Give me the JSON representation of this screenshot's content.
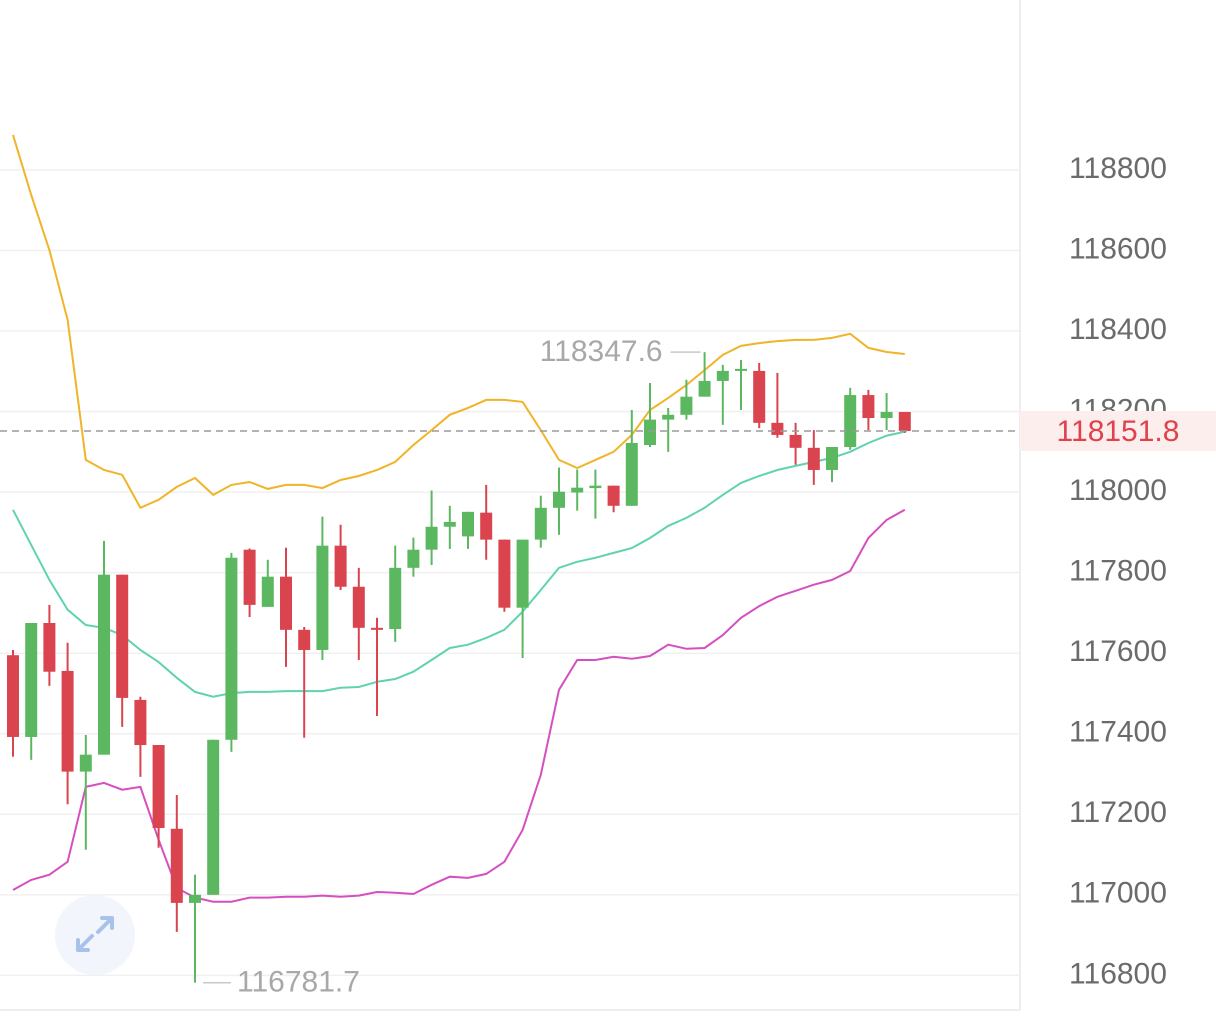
{
  "chart_data": {
    "type": "candlestick",
    "categories": [
      null,
      null,
      null,
      null,
      null,
      null,
      null,
      null,
      null,
      null,
      null,
      null,
      null,
      null,
      null,
      null,
      null,
      null,
      null,
      null,
      null,
      null,
      null,
      null,
      null,
      null,
      null,
      null,
      null,
      null,
      null,
      null,
      null,
      null,
      null,
      null,
      null,
      null,
      null,
      null,
      null,
      null,
      null,
      null,
      null,
      null,
      null,
      null,
      null,
      null
    ],
    "open": [
      117595,
      117392,
      117675,
      117556,
      117306,
      117348,
      117795,
      117484,
      117372,
      117164,
      116980,
      117000,
      117385,
      117857,
      117715,
      117790,
      117658,
      117608,
      117867,
      117765,
      117663,
      117660,
      117812,
      117857,
      117914,
      117890,
      117949,
      117882,
      117713,
      117882,
      117961,
      117999,
      118010,
      118016,
      117966,
      118117,
      118180,
      118192,
      118237,
      118276,
      118301,
      118301,
      118172,
      118142,
      118110,
      118055,
      118112,
      118241,
      118184,
      118199
    ],
    "high": [
      117608,
      117675,
      117720,
      117626,
      117397,
      117879,
      117795,
      117492,
      117372,
      117248,
      117050,
      117385,
      117849,
      117860,
      117832,
      117862,
      117665,
      117939,
      117919,
      117812,
      117688,
      117867,
      117887,
      118004,
      117966,
      117951,
      118018,
      117882,
      117882,
      117991,
      118061,
      118056,
      118056,
      118016,
      118204,
      118271,
      118209,
      118279,
      118347.6,
      118316,
      118328,
      118321,
      118296,
      118172,
      118154,
      118112,
      118259,
      118254,
      118246,
      118199
    ],
    "low": [
      117343,
      117335,
      117519,
      117225,
      117112,
      117348,
      117417,
      117293,
      117117,
      116908,
      116781.7,
      117000,
      117355,
      117690,
      117715,
      117566,
      117390,
      117583,
      117757,
      117583,
      117444,
      117628,
      117790,
      117819,
      117859,
      117859,
      117832,
      117703,
      117588,
      117862,
      117894,
      117954,
      117934,
      117950,
      117966,
      118112,
      118100,
      118180,
      118237,
      118167,
      118204,
      118159,
      118135,
      118068,
      118018,
      118025,
      118105,
      118154,
      118154,
      118147
    ],
    "close": [
      117392,
      117675,
      117554,
      117306,
      117348,
      117795,
      117489,
      117372,
      117166,
      116980,
      117000,
      117385,
      117837,
      117720,
      117790,
      117658,
      117608,
      117867,
      117765,
      117663,
      117660,
      117812,
      117857,
      117914,
      117926,
      117951,
      117882,
      117713,
      117882,
      117961,
      118001,
      118011,
      118016,
      117966,
      118122,
      118180,
      118192,
      118237,
      118276,
      118301,
      118306,
      118172,
      118142,
      118110,
      118055,
      118112,
      118241,
      118184,
      118199,
      118151.8
    ],
    "up_color": "#5cb860",
    "down_color": "#d9444f",
    "bands": [
      {
        "color": "#f0b429",
        "values": [
          118887,
          118738,
          118601,
          118428,
          118080,
          118055,
          118043,
          117961,
          117981,
          118013,
          118035,
          117993,
          118018,
          118025,
          118008,
          118018,
          118018,
          118010,
          118030,
          118040,
          118055,
          118075,
          118117,
          118154,
          118192,
          118209,
          118229,
          118229,
          118224,
          118154,
          118080,
          118060,
          118080,
          118100,
          118142,
          118204,
          118234,
          118266,
          118303,
          118341,
          118363,
          118370,
          118375,
          118378,
          118378,
          118383,
          118393,
          118358,
          118348,
          118343
        ]
      },
      {
        "color": "#5fd3b0",
        "values": [
          117956,
          117869,
          117782,
          117708,
          117670,
          117663,
          117645,
          117608,
          117578,
          117539,
          117504,
          117492,
          117501,
          117504,
          117504,
          117506,
          117506,
          117506,
          117514,
          117516,
          117529,
          117536,
          117554,
          117583,
          117613,
          117621,
          117638,
          117658,
          117703,
          117757,
          117812,
          117827,
          117837,
          117849,
          117861,
          117886,
          117916,
          117936,
          117961,
          117993,
          118023,
          118040,
          118055,
          118065,
          118075,
          118085,
          118100,
          118122,
          118140,
          118150
        ]
      },
      {
        "color": "#d64fc0",
        "values": [
          117012,
          117037,
          117050,
          117082,
          117268,
          117278,
          117261,
          117268,
          117137,
          117017,
          116993,
          116983,
          116983,
          116993,
          116993,
          116995,
          116995,
          116998,
          116995,
          116998,
          117007,
          117005,
          117002,
          117025,
          117045,
          117042,
          117052,
          117082,
          117161,
          117298,
          117509,
          117583,
          117583,
          117591,
          117586,
          117593,
          117621,
          117611,
          117613,
          117645,
          117688,
          117717,
          117740,
          117755,
          117770,
          117782,
          117804,
          117886,
          117931,
          117956
        ]
      }
    ],
    "ylim": [
      116714,
      119222
    ],
    "yticks": [
      116800,
      117000,
      117200,
      117400,
      117600,
      117800,
      118000,
      118200,
      118400,
      118600,
      118800
    ],
    "grid": true,
    "high_label_index": 38,
    "low_label_index": 10,
    "price_line_color": "#e0424b"
  }
}
